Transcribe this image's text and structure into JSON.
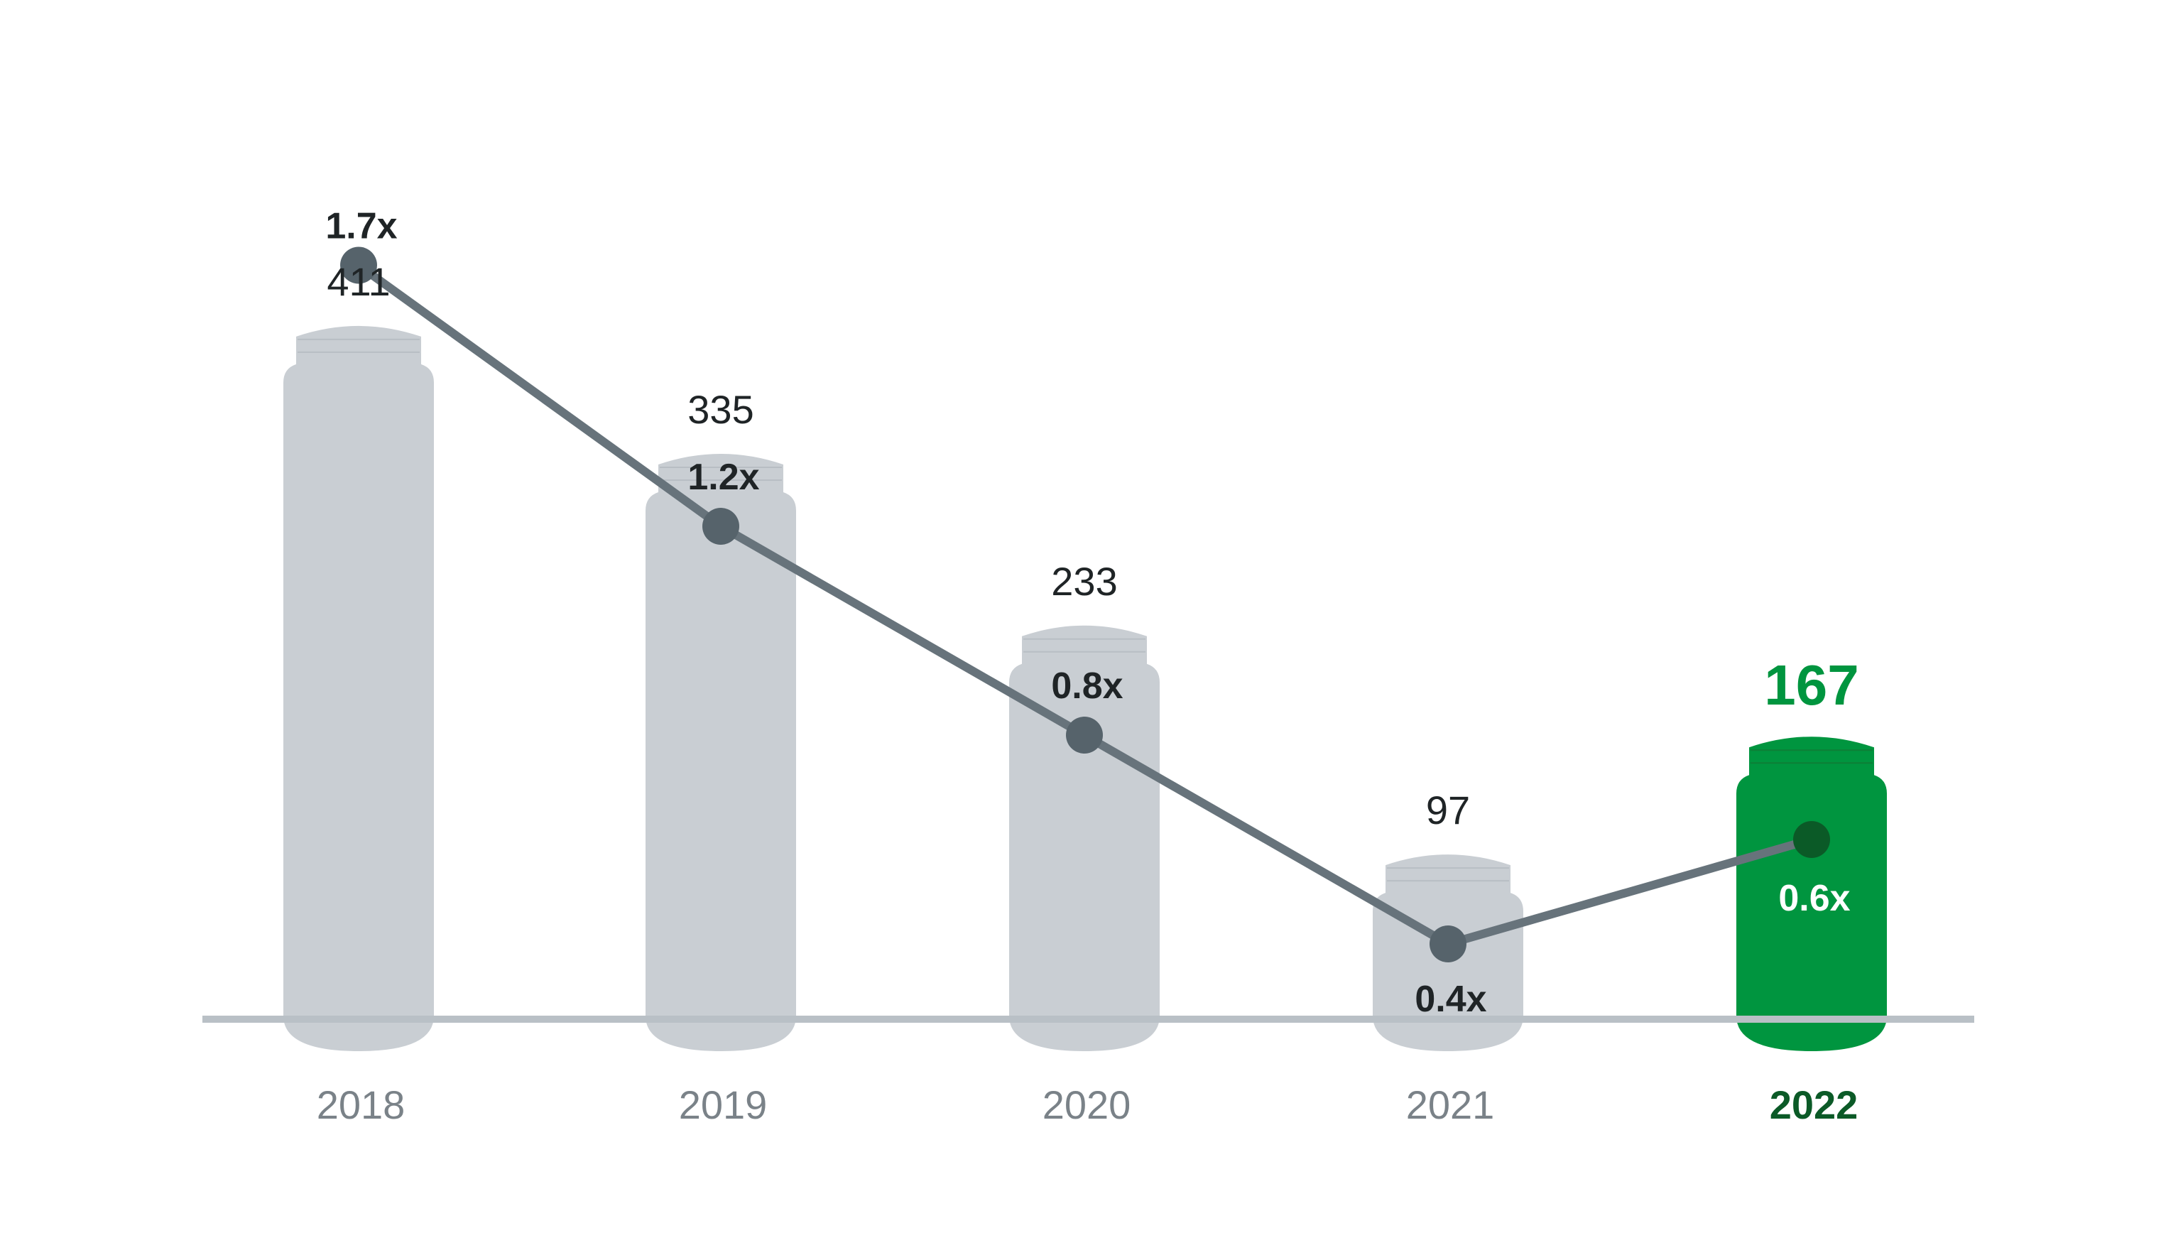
{
  "colors": {
    "bar": "#c9ced3",
    "bar_highlight": "#00953f",
    "line": "#67737b",
    "marker": "#56636b",
    "marker_highlight": "#0b5a27",
    "baseline": "#b9c0c6",
    "value_highlight": "#00953f",
    "year": "#7a8288",
    "year_highlight": "#0b5a27"
  },
  "chart_data": {
    "type": "bar",
    "bar_shape": "bottle",
    "categories": [
      "2018",
      "2019",
      "2020",
      "2021",
      "2022"
    ],
    "highlight_index": 4,
    "series": [
      {
        "values": [
          411,
          335,
          233,
          97,
          167
        ],
        "value_labels": [
          "411",
          "335",
          "233",
          "97",
          "167"
        ]
      },
      {
        "type": "line",
        "values": [
          1.7,
          1.2,
          0.8,
          0.4,
          0.6
        ],
        "value_labels": [
          "1.7x",
          "1.2x",
          "0.8x",
          "0.4x",
          "0.6x"
        ]
      }
    ],
    "title": "",
    "xlabel": "",
    "ylabel": "",
    "grid": false,
    "legend": "none"
  }
}
